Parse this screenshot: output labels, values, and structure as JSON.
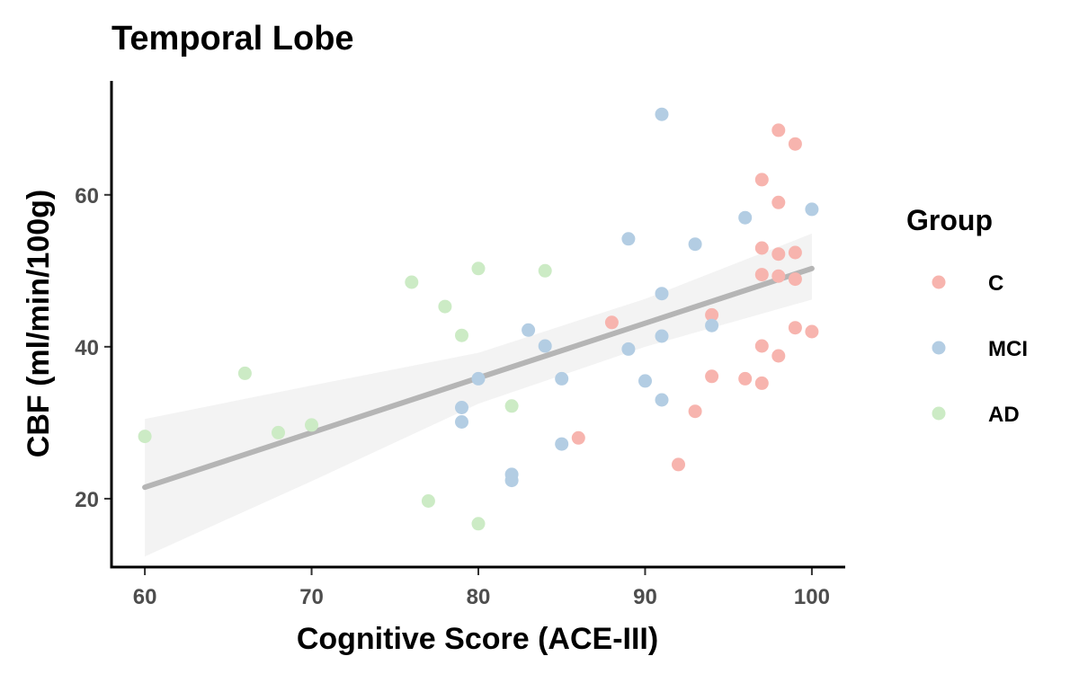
{
  "chart_data": {
    "type": "scatter",
    "title": "Temporal Lobe",
    "xlabel": "Cognitive Score (ACE-III)",
    "ylabel": "CBF (ml/min/100g)",
    "xlim": [
      58,
      102
    ],
    "ylim": [
      11,
      75
    ],
    "xticks": [
      60,
      70,
      80,
      90,
      100
    ],
    "yticks": [
      20,
      40,
      60
    ],
    "grid": false,
    "legend": {
      "title": "Group",
      "position": "right"
    },
    "series": [
      {
        "name": "C",
        "color": "#f7b4ae",
        "points": [
          [
            86,
            28.0
          ],
          [
            88,
            43.2
          ],
          [
            92,
            24.5
          ],
          [
            93,
            31.5
          ],
          [
            94,
            44.2
          ],
          [
            94,
            36.1
          ],
          [
            96,
            35.8
          ],
          [
            97,
            62.0
          ],
          [
            97,
            53.0
          ],
          [
            97,
            49.5
          ],
          [
            97,
            40.1
          ],
          [
            97,
            35.2
          ],
          [
            98,
            68.5
          ],
          [
            98,
            59.0
          ],
          [
            98,
            52.2
          ],
          [
            98,
            49.3
          ],
          [
            98,
            38.8
          ],
          [
            99,
            66.7
          ],
          [
            99,
            52.4
          ],
          [
            99,
            48.9
          ],
          [
            99,
            42.5
          ],
          [
            100,
            42.0
          ]
        ]
      },
      {
        "name": "MCI",
        "color": "#b3cde3",
        "points": [
          [
            79,
            32.0
          ],
          [
            79,
            30.1
          ],
          [
            80,
            35.8
          ],
          [
            82,
            23.2
          ],
          [
            82,
            22.4
          ],
          [
            83,
            42.2
          ],
          [
            84,
            40.1
          ],
          [
            85,
            35.8
          ],
          [
            85,
            27.2
          ],
          [
            89,
            54.2
          ],
          [
            89,
            39.7
          ],
          [
            90,
            35.5
          ],
          [
            91,
            70.6
          ],
          [
            91,
            47.0
          ],
          [
            91,
            41.4
          ],
          [
            91,
            33.0
          ],
          [
            93,
            53.5
          ],
          [
            94,
            42.8
          ],
          [
            96,
            57.0
          ],
          [
            100,
            58.1
          ]
        ]
      },
      {
        "name": "AD",
        "color": "#ccebc5",
        "points": [
          [
            60,
            28.2
          ],
          [
            66,
            36.5
          ],
          [
            68,
            28.7
          ],
          [
            70,
            29.7
          ],
          [
            76,
            48.5
          ],
          [
            77,
            19.7
          ],
          [
            78,
            45.3
          ],
          [
            79,
            41.5
          ],
          [
            80,
            50.3
          ],
          [
            80,
            16.7
          ],
          [
            82,
            32.2
          ],
          [
            84,
            50.0
          ]
        ]
      }
    ],
    "regression": {
      "color": "#b5b5b5",
      "x": [
        60,
        70,
        80,
        90,
        100
      ],
      "fit": [
        21.5,
        28.7,
        35.9,
        43.1,
        50.3
      ],
      "ci_lower": [
        12.4,
        22.3,
        32.5,
        40.0,
        46.2
      ],
      "ci_upper": [
        30.5,
        34.9,
        39.2,
        46.3,
        54.9
      ]
    }
  }
}
